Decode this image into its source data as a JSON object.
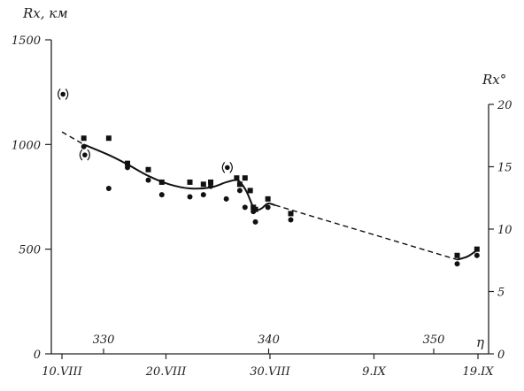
{
  "chart_data": {
    "type": "scatter",
    "title": "",
    "y_left": {
      "label": "Rx, км",
      "range": [
        0,
        1500
      ],
      "ticks": [
        "0",
        "500",
        "1000",
        "1500"
      ]
    },
    "y_right": {
      "label": "Rx°",
      "range": [
        0,
        20
      ],
      "ticks": [
        "0",
        "5",
        "10",
        "15",
        "20"
      ]
    },
    "x_dates": {
      "ticks": [
        "10.VIII",
        "20.VIII",
        "30.VIII",
        "9.IX",
        "19.IX"
      ],
      "values": [
        10,
        20,
        30,
        40,
        50
      ]
    },
    "x_eta": {
      "label": "η",
      "ticks": [
        "330",
        "340",
        "350"
      ],
      "values": [
        330,
        340,
        350
      ]
    },
    "series": [
      {
        "marker": "square",
        "x": [
          12.1,
          14.5,
          16.3,
          18.3,
          19.6,
          22.3,
          23.6,
          24.3,
          26.8,
          27.1,
          27.6,
          28.1,
          28.4,
          28.6,
          29.8,
          32.0,
          48.0,
          49.9
        ],
        "y": [
          1030,
          1030,
          910,
          880,
          820,
          820,
          810,
          820,
          840,
          810,
          840,
          780,
          700,
          690,
          740,
          670,
          470,
          500
        ]
      },
      {
        "marker": "circle",
        "x": [
          12.1,
          14.5,
          16.3,
          18.3,
          19.6,
          22.3,
          23.6,
          24.3,
          25.8,
          27.1,
          27.6,
          28.1,
          28.4,
          28.6,
          29.8,
          32.0,
          48.0,
          49.9
        ],
        "y": [
          990,
          790,
          890,
          830,
          760,
          750,
          760,
          800,
          740,
          780,
          700,
          780,
          680,
          630,
          700,
          640,
          430,
          470
        ]
      },
      {
        "marker": "circle-in-parens",
        "x": [
          10.1,
          12.2,
          25.9
        ],
        "y": [
          1240,
          950,
          890
        ]
      }
    ],
    "fit_solid": {
      "x": [
        12.1,
        14.5,
        16.3,
        18.3,
        20.3,
        22.3,
        24.3,
        25.8,
        26.8,
        27.3,
        27.8,
        28.3,
        28.6,
        29.2,
        29.8,
        30.5
      ],
      "y": [
        1000,
        950,
        905,
        850,
        810,
        790,
        795,
        820,
        830,
        810,
        770,
        710,
        685,
        695,
        718,
        710
      ]
    },
    "fit_dashed_left": {
      "x": [
        10.0,
        12.1
      ],
      "y": [
        1060,
        1000
      ]
    },
    "fit_dashed_right": {
      "x": [
        30.5,
        48.0
      ],
      "y": [
        710,
        450
      ]
    },
    "fit_solid_end": {
      "x": [
        48.0,
        49.0,
        49.9
      ],
      "y": [
        450,
        465,
        495
      ]
    }
  }
}
